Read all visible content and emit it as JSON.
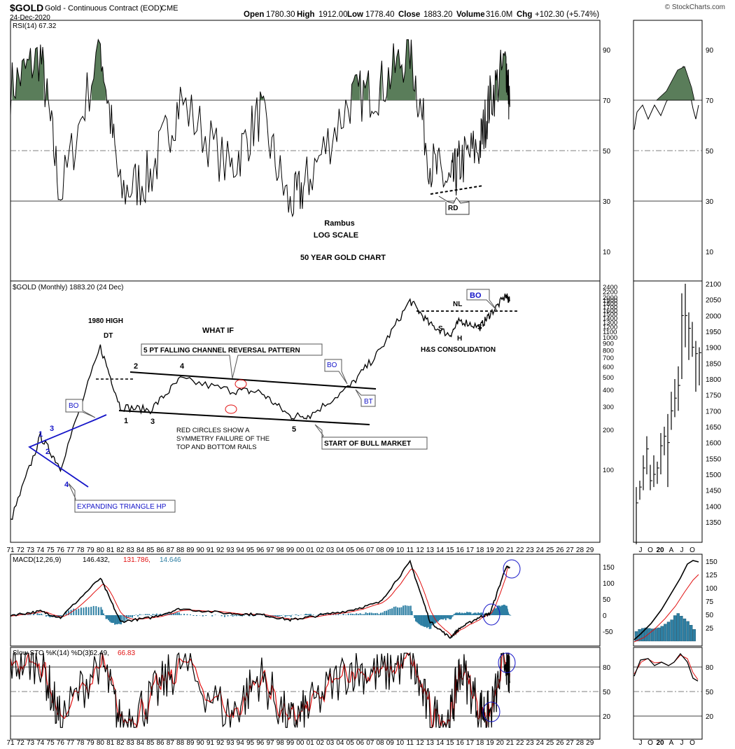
{
  "header": {
    "symbol": "$GOLD",
    "description": "Gold - Continuous Contract (EOD)",
    "exchange": "CME",
    "date": "24-Dec-2020",
    "open_label": "Open",
    "open": "1780.30",
    "high_label": "High",
    "high": "1912.00",
    "low_label": "Low",
    "low": "1778.40",
    "close_label": "Close",
    "close": "1883.20",
    "volume_label": "Volume",
    "volume": "316.0M",
    "chg_label": "Chg",
    "chg": "+102.30 (+5.74%)",
    "watermark": "© StockCharts.com"
  },
  "colors": {
    "rsi_fill": "#5a7d5a",
    "macd_line": "#000000",
    "macd_signal": "#e11010",
    "macd_hist": "#2e7fa3",
    "sto_k": "#000000",
    "sto_d": "#e11010",
    "annotation_blue": "#1414c8",
    "circle_red": "#e11010"
  },
  "rsi_panel": {
    "legend": "RSI(14) 67.32",
    "ticks": [
      "90",
      "70",
      "50",
      "30",
      "10"
    ],
    "notes": {
      "rambus": "Rambus",
      "log_scale": "LOG SCALE",
      "chart_title": "50 YEAR GOLD CHART",
      "rd": "RD"
    }
  },
  "price_panel": {
    "legend": "$GOLD (Monthly) 1883.20 (24 Dec)",
    "ticks": [
      "2400",
      "2200",
      "2000",
      "1900",
      "1800",
      "1700",
      "1600",
      "1500",
      "1400",
      "1300",
      "1200",
      "1100",
      "1000",
      "900",
      "800",
      "700",
      "600",
      "500",
      "400",
      "300",
      "200",
      "100"
    ],
    "zoom_ticks": [
      "2100",
      "2050",
      "2000",
      "1950",
      "1900",
      "1850",
      "1800",
      "1750",
      "1700",
      "1650",
      "1600",
      "1550",
      "1500",
      "1450",
      "1400",
      "1350"
    ],
    "annotations": {
      "high_1980": "1980 HIGH",
      "dt": "DT",
      "what_if": "WHAT IF",
      "channel": "5 PT FALLING CHANNEL REVERSAL PATTERN",
      "bo": "BO",
      "bt": "BT",
      "nl": "NL",
      "s": "S",
      "h": "H",
      "hs": "H&S CONSOLIDATION",
      "bull": "START OF BULL MARKET",
      "red_line1": "RED CIRCLES SHOW A",
      "red_line2": "SYMMETRY FAILURE OF THE",
      "red_line3": "TOP AND BOTTOM RAILS",
      "triangle": "EXPANDING TRIANGLE HP",
      "n1": "1",
      "n2": "2",
      "n3": "3",
      "n4": "4",
      "n5": "5"
    }
  },
  "x_axis": {
    "years": [
      "71",
      "72",
      "73",
      "74",
      "75",
      "76",
      "77",
      "78",
      "79",
      "80",
      "81",
      "82",
      "83",
      "84",
      "85",
      "86",
      "87",
      "88",
      "89",
      "90",
      "91",
      "92",
      "93",
      "94",
      "95",
      "96",
      "97",
      "98",
      "99",
      "00",
      "01",
      "02",
      "03",
      "04",
      "05",
      "06",
      "07",
      "08",
      "09",
      "10",
      "11",
      "12",
      "13",
      "14",
      "15",
      "16",
      "17",
      "18",
      "19",
      "20",
      "21",
      "22",
      "23",
      "24",
      "25",
      "26",
      "27",
      "28",
      "29"
    ],
    "zoom_months": [
      "J",
      "O",
      "20",
      "A",
      "J",
      "O"
    ]
  },
  "macd_panel": {
    "legend_name": "MACD(12,26,9)",
    "legend_v1": "146.432,",
    "legend_v2": "131.786,",
    "legend_v3": "14.646",
    "ticks": [
      "150",
      "100",
      "50",
      "0",
      "-50"
    ],
    "zoom_ticks": [
      "150",
      "125",
      "100",
      "75",
      "50",
      "25"
    ]
  },
  "sto_panel": {
    "legend_name": "Slow STO %K(14) %D(3)",
    "legend_k": "62.49,",
    "legend_d": "66.83",
    "ticks": [
      "80",
      "50",
      "20"
    ]
  },
  "chart_data": {
    "type": "line",
    "title": "50 YEAR GOLD CHART",
    "symbol": "$GOLD",
    "scale": "log",
    "x": [
      1971,
      1974,
      1976,
      1980,
      1982,
      1985,
      1988,
      1993,
      1996,
      1999,
      2001,
      2005,
      2008,
      2011,
      2013,
      2015,
      2016,
      2018,
      2019,
      2020.6,
      2020.98
    ],
    "series": [
      {
        "name": "$GOLD",
        "values": [
          41,
          180,
          105,
          850,
          300,
          285,
          485,
          400,
          390,
          255,
          260,
          430,
          800,
          1900,
          1250,
          1050,
          1350,
          1200,
          1500,
          2075,
          1883
        ]
      }
    ],
    "rsi": {
      "x": [
        1971,
        1974,
        1976,
        1980,
        1982,
        1985,
        1988,
        1993,
        1996,
        1999,
        2001,
        2005,
        2008,
        2011,
        2013,
        2015,
        2016,
        2018,
        2019,
        2020.6,
        2020.98
      ],
      "values": [
        75,
        88,
        32,
        92,
        33,
        40,
        70,
        42,
        65,
        27,
        40,
        70,
        75,
        90,
        45,
        36,
        45,
        52,
        70,
        85,
        67.32
      ]
    },
    "macd": {
      "x": [
        1971,
        1974,
        1976,
        1980,
        1982,
        1985,
        1988,
        1993,
        1996,
        1999,
        2001,
        2005,
        2008,
        2011,
        2013,
        2015,
        2016,
        2018,
        2019,
        2020.6,
        2020.98
      ],
      "values": [
        0,
        12,
        -8,
        115,
        -20,
        -8,
        20,
        5,
        2,
        -15,
        -5,
        15,
        40,
        165,
        -20,
        -70,
        -40,
        -5,
        5,
        150,
        146.432
      ]
    },
    "sto": {
      "x": [
        1971,
        1974,
        1976,
        1980,
        1982,
        1985,
        1988,
        1993,
        1996,
        1999,
        2001,
        2005,
        2008,
        2011,
        2013,
        2015,
        2016,
        2018,
        2019,
        2020.6,
        2020.98
      ],
      "values": [
        85,
        90,
        12,
        92,
        10,
        40,
        85,
        20,
        70,
        10,
        30,
        80,
        70,
        90,
        20,
        15,
        80,
        30,
        20,
        92,
        62.49
      ]
    },
    "price_ylim": [
      30,
      2400
    ],
    "xlim": [
      1971,
      2030
    ]
  }
}
